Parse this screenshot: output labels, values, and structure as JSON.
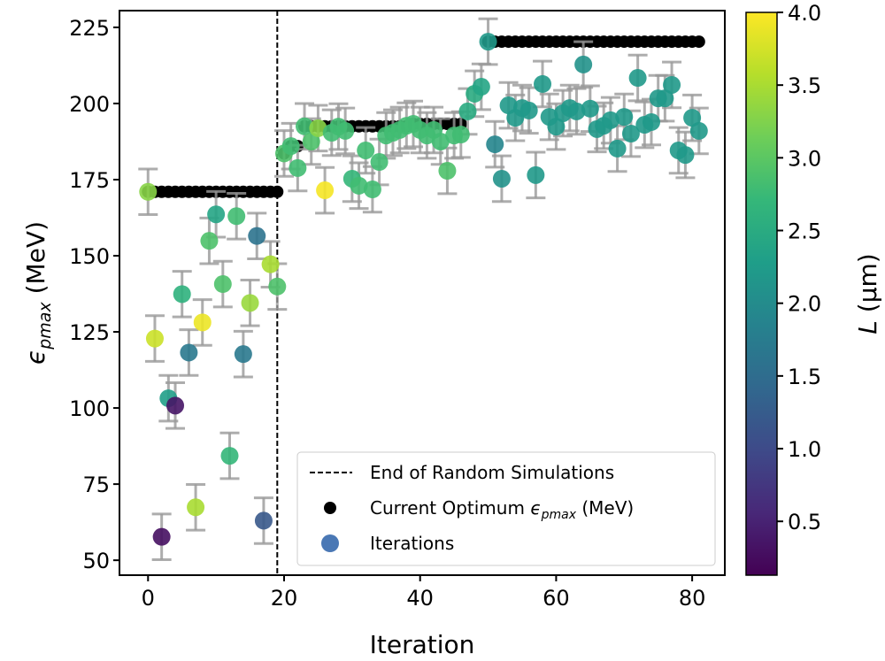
{
  "chart_data": {
    "type": "scatter",
    "xlabel": "Iteration",
    "ylabel": "ϵ",
    "ylabel_sub": "pmax",
    "ylabel_unit": " (MeV)",
    "xlim": [
      -4.2,
      84.8
    ],
    "ylim": [
      45.1,
      230.5
    ],
    "xticks": [
      0,
      20,
      40,
      60,
      80
    ],
    "yticks": [
      50,
      75,
      100,
      125,
      150,
      175,
      200,
      225
    ],
    "grid": false,
    "legend_placement": "lower-right",
    "legend": {
      "vline": "End of Random Simulations",
      "optimum_prefix": "Current Optimum ",
      "optimum_sym": "ϵ",
      "optimum_sub": "pmax",
      "optimum_suffix": " (MeV)",
      "iterations": "Iterations"
    },
    "vline_x": 19,
    "error": 7.5,
    "colorbar": {
      "label": "L",
      "label_unit": " (μm)",
      "colormap": "viridis",
      "range": [
        0.13,
        4.0
      ],
      "ticks": [
        "0.5",
        "1.0",
        "1.5",
        "2.0",
        "2.5",
        "3.0",
        "3.5",
        "4.0"
      ]
    },
    "iterations": {
      "x": [
        0,
        1,
        2,
        3,
        4,
        5,
        6,
        7,
        8,
        9,
        10,
        11,
        12,
        13,
        14,
        15,
        16,
        17,
        18,
        19,
        20,
        21,
        22,
        23,
        24,
        25,
        26,
        27,
        28,
        29,
        30,
        31,
        32,
        33,
        34,
        35,
        36,
        37,
        38,
        39,
        40,
        41,
        42,
        43,
        44,
        45,
        46,
        47,
        48,
        49,
        50,
        51,
        52,
        53,
        54,
        55,
        56,
        57,
        58,
        59,
        60,
        61,
        62,
        63,
        64,
        65,
        66,
        67,
        68,
        69,
        70,
        71,
        72,
        73,
        74,
        75,
        76,
        77,
        78,
        79,
        80,
        81
      ],
      "y": [
        171.0,
        122.8,
        57.7,
        103.2,
        100.8,
        137.4,
        118.2,
        67.4,
        128.1,
        154.9,
        163.6,
        140.7,
        84.3,
        163.0,
        117.7,
        134.5,
        156.5,
        63.0,
        147.2,
        139.9,
        183.6,
        186.0,
        178.8,
        192.5,
        187.5,
        191.9,
        171.5,
        190.4,
        192.4,
        191.0,
        175.3,
        173.0,
        184.6,
        171.8,
        180.8,
        189.5,
        190.4,
        191.3,
        192.7,
        193.3,
        191.3,
        189.5,
        191.3,
        187.5,
        177.9,
        189.5,
        189.8,
        197.4,
        203.2,
        205.5,
        220.3,
        186.6,
        175.3,
        199.4,
        195.3,
        198.5,
        197.7,
        176.5,
        206.4,
        195.6,
        192.4,
        196.8,
        198.5,
        197.4,
        212.8,
        198.3,
        191.6,
        192.7,
        194.5,
        185.2,
        195.6,
        190.1,
        208.4,
        193.0,
        193.9,
        201.7,
        201.7,
        206.1,
        184.6,
        183.1,
        195.3,
        191.0
      ],
      "L": [
        3.3,
        3.7,
        0.3,
        2.3,
        0.35,
        2.6,
        1.7,
        3.5,
        3.9,
        2.9,
        2.4,
        2.9,
        2.7,
        2.8,
        1.7,
        3.4,
        1.6,
        1.2,
        3.5,
        2.9,
        2.9,
        2.8,
        2.8,
        2.8,
        2.9,
        3.3,
        3.95,
        2.8,
        2.8,
        2.8,
        2.7,
        2.8,
        2.8,
        2.8,
        2.8,
        2.8,
        2.8,
        2.8,
        2.8,
        2.8,
        2.8,
        2.8,
        2.8,
        2.8,
        2.9,
        2.8,
        2.8,
        2.5,
        2.5,
        2.4,
        2.2,
        1.9,
        2.1,
        2.2,
        2.2,
        2.2,
        2.2,
        2.2,
        2.2,
        2.2,
        2.2,
        2.2,
        2.2,
        2.2,
        2.1,
        2.2,
        2.2,
        2.2,
        2.2,
        2.2,
        2.2,
        2.2,
        2.2,
        2.2,
        2.2,
        2.2,
        2.2,
        2.2,
        2.2,
        2.2,
        2.2,
        2.2
      ]
    },
    "current_optimum": {
      "x": [
        0,
        1,
        2,
        3,
        4,
        5,
        6,
        7,
        8,
        9,
        10,
        11,
        12,
        13,
        14,
        15,
        16,
        17,
        18,
        19,
        20,
        21,
        22,
        23,
        24,
        25,
        26,
        27,
        28,
        29,
        30,
        31,
        32,
        33,
        34,
        35,
        36,
        37,
        38,
        39,
        40,
        41,
        42,
        43,
        44,
        45,
        46,
        50,
        51,
        52,
        53,
        54,
        55,
        56,
        57,
        58,
        59,
        60,
        61,
        62,
        63,
        64,
        65,
        66,
        67,
        68,
        69,
        70,
        71,
        72,
        73,
        74,
        75,
        76,
        77,
        78,
        79,
        80,
        81
      ],
      "y": [
        171,
        171,
        171,
        171,
        171,
        171,
        171,
        171,
        171,
        171,
        171,
        171,
        171,
        171,
        171,
        171,
        171,
        171,
        171,
        171,
        183.6,
        186,
        186,
        192.5,
        192.5,
        192.5,
        192.5,
        192.5,
        192.5,
        192.5,
        192.5,
        192.5,
        192.5,
        192.5,
        192.5,
        192.5,
        192.5,
        192.5,
        192.5,
        193.3,
        193.3,
        193.3,
        193.3,
        193.3,
        193.3,
        193.3,
        193.3,
        220.3,
        220.3,
        220.3,
        220.3,
        220.3,
        220.3,
        220.3,
        220.3,
        220.3,
        220.3,
        220.3,
        220.3,
        220.3,
        220.3,
        220.3,
        220.3,
        220.3,
        220.3,
        220.3,
        220.3,
        220.3,
        220.3,
        220.3,
        220.3,
        220.3,
        220.3,
        220.3,
        220.3,
        220.3,
        220.3,
        220.3,
        220.3
      ]
    },
    "colors": {
      "errorbar": "#999999",
      "optimum": "#000000",
      "legend_iter": "#4a78b5"
    }
  }
}
